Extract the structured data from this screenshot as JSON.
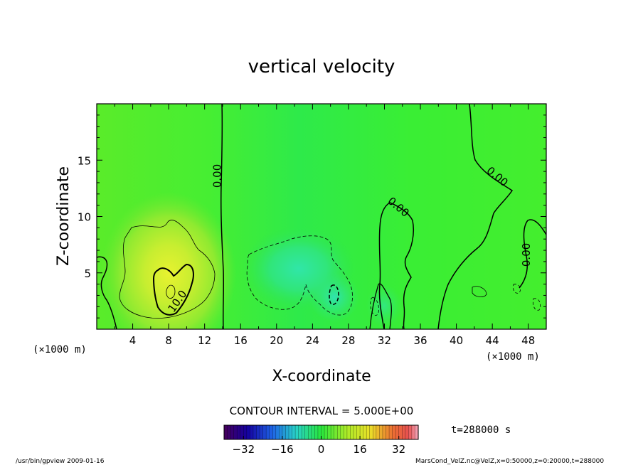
{
  "chart_data": {
    "type": "contour",
    "title": "vertical velocity",
    "xlabel": "X-coordinate",
    "ylabel": "Z-coordinate",
    "x_unit": "(×1000 m)",
    "z_unit": "(×1000 m)",
    "xlim": [
      0,
      50
    ],
    "zlim": [
      0,
      20
    ],
    "x_ticks": [
      4,
      8,
      12,
      16,
      20,
      24,
      28,
      32,
      36,
      40,
      44,
      48
    ],
    "z_ticks": [
      5,
      10,
      15
    ],
    "contour_interval_text": "CONTOUR INTERVAL = 5.000E+00",
    "time_text": "t=288000 s",
    "contour_labels": [
      {
        "text": "0.00",
        "x": 13.8,
        "z": 13.6
      },
      {
        "text": "0.00",
        "x": 33.3,
        "z": 10.6
      },
      {
        "text": "0.00",
        "x": 44.3,
        "z": 13.3
      },
      {
        "text": "0.00",
        "x": 48.2,
        "z": 6.6
      },
      {
        "text": "10.0",
        "x": 9.3,
        "z": 2.3
      }
    ],
    "features": [
      {
        "kind": "positive",
        "center_x": 8.5,
        "center_z": 3.5,
        "peak": 13
      },
      {
        "kind": "negative",
        "center_x": 22,
        "center_z": 5,
        "peak": -7
      },
      {
        "kind": "negative",
        "center_x": 26,
        "center_z": 3,
        "peak": -6
      }
    ],
    "colorbar": {
      "min": -40,
      "max": 40,
      "tick_labels": [
        "−32",
        "−16",
        "0",
        "16",
        "32"
      ],
      "tick_values": [
        -32,
        -16,
        0,
        16,
        32
      ]
    },
    "colors": {
      "background_field": "#33ee33",
      "positive_max": "#ffff22",
      "negative_max": "#33ddbb"
    }
  },
  "footer": {
    "left": "/usr/bin/gpview   2009-01-16",
    "right": "MarsCond_VelZ.nc@VelZ,x=0:50000,z=0:20000,t=288000"
  }
}
